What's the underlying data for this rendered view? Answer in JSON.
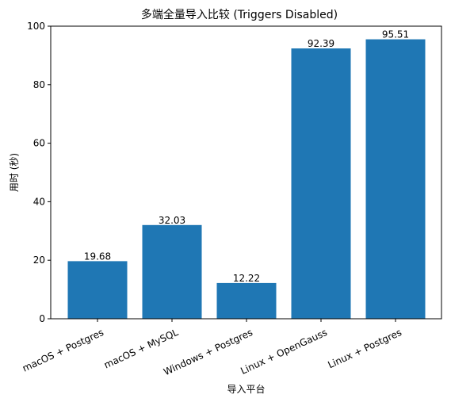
{
  "chart_data": {
    "type": "bar",
    "title": "多端全量导入比较 (Triggers Disabled)",
    "xlabel": "导入平台",
    "ylabel": "用时 (秒)",
    "categories": [
      "macOS + Postgres",
      "macOS + MySQL",
      "Windows + Postgres",
      "Linux + OpenGauss",
      "Linux + Postgres"
    ],
    "values": [
      19.68,
      32.03,
      12.22,
      92.39,
      95.51
    ],
    "data_labels": [
      "19.68",
      "32.03",
      "12.22",
      "92.39",
      "95.51"
    ],
    "ylim": [
      0,
      100
    ],
    "yticks": [
      "0",
      "20",
      "40",
      "60",
      "80",
      "100"
    ],
    "bar_color": "#1f77b4",
    "grid": false,
    "legend": "none"
  }
}
